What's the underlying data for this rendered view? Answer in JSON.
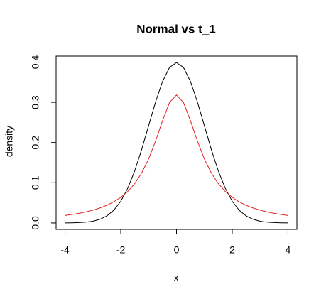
{
  "chart_data": {
    "type": "line",
    "title": "Normal vs t_1",
    "x_label": "x",
    "y_label": "density",
    "x": [
      -4,
      -3.75,
      -3.5,
      -3.25,
      -3,
      -2.75,
      -2.5,
      -2.25,
      -2,
      -1.75,
      -1.5,
      -1.25,
      -1,
      -0.75,
      -0.5,
      -0.25,
      0,
      0.25,
      0.5,
      0.75,
      1,
      1.25,
      1.5,
      1.75,
      2,
      2.25,
      2.5,
      2.75,
      3,
      3.25,
      3.5,
      3.75,
      4
    ],
    "series": [
      {
        "color": "#000000",
        "values": [
          0.0001,
          0.0004,
          0.0009,
          0.002,
          0.0044,
          0.0091,
          0.0175,
          0.0317,
          0.054,
          0.0863,
          0.1295,
          0.1826,
          0.242,
          0.3011,
          0.3521,
          0.3867,
          0.3989,
          0.3867,
          0.3521,
          0.3011,
          0.242,
          0.1826,
          0.1295,
          0.0863,
          0.054,
          0.0317,
          0.0175,
          0.0091,
          0.0044,
          0.002,
          0.0009,
          0.0004,
          0.0001
        ]
      },
      {
        "color": "#df2020",
        "values": [
          0.0187,
          0.0211,
          0.024,
          0.0275,
          0.0318,
          0.0372,
          0.0439,
          0.0525,
          0.0637,
          0.0784,
          0.0979,
          0.1242,
          0.1592,
          0.2037,
          0.2546,
          0.2996,
          0.3183,
          0.2996,
          0.2546,
          0.2037,
          0.1592,
          0.1242,
          0.0979,
          0.0784,
          0.0637,
          0.0525,
          0.0439,
          0.0372,
          0.0318,
          0.0275,
          0.024,
          0.0211,
          0.0187
        ]
      }
    ],
    "xlim": [
      -4.32,
      4.32
    ],
    "ylim": [
      -0.016,
      0.415
    ],
    "xticks": [
      -4,
      -2,
      0,
      2,
      4
    ],
    "yticks": [
      0.0,
      0.1,
      0.2,
      0.3,
      0.4
    ]
  }
}
